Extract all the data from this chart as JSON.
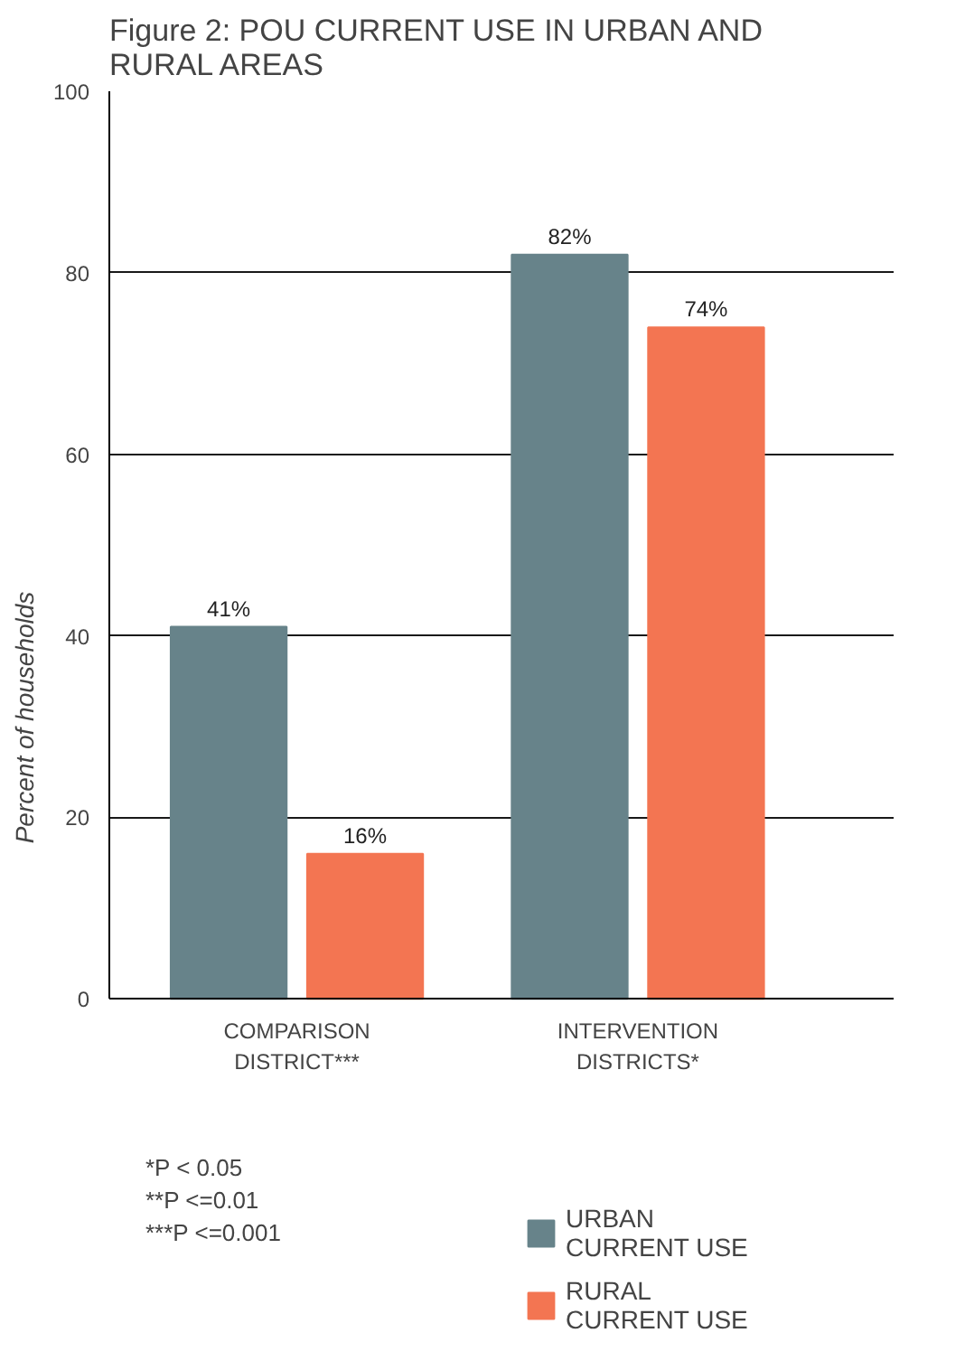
{
  "chart_data": {
    "type": "bar",
    "title": "Figure 2: POU CURRENT USE IN URBAN AND RURAL AREAS",
    "ylabel": "Percent of households",
    "categories": [
      "COMPARISON DISTRICT***",
      "INTERVENTION DISTRICTS*"
    ],
    "series": [
      {
        "name": "URBAN CURRENT USE",
        "color": "#67838a",
        "values": [
          41,
          82
        ],
        "value_labels": [
          "41%",
          "82%"
        ]
      },
      {
        "name": "RURAL CURRENT USE",
        "color": "#f37552",
        "values": [
          16,
          74
        ],
        "value_labels": [
          "16%",
          "74%"
        ]
      }
    ],
    "ylim": [
      0,
      100
    ],
    "yticks": [
      0,
      20,
      40,
      60,
      80,
      100
    ],
    "grid": "y",
    "legend": "bottom right",
    "annotations": [
      "*P < 0.05",
      "**P <=0.01",
      "***P <=0.001"
    ]
  }
}
